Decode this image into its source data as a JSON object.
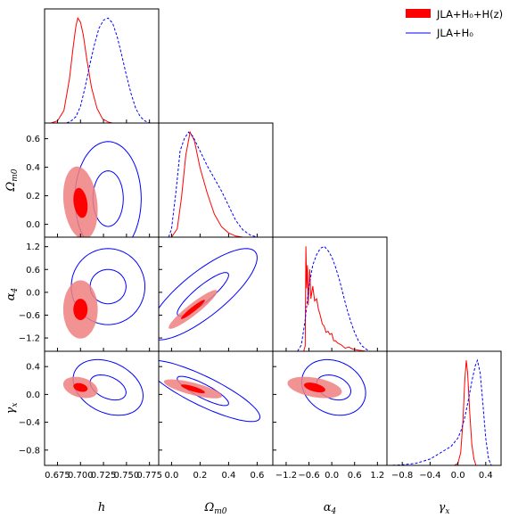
{
  "legend": {
    "placement": "top-right",
    "entries": [
      {
        "label": "JLA+H₀+H(z)",
        "style": "filled",
        "color": "#ff0000"
      },
      {
        "label": "JLA+H₀",
        "style": "line",
        "color": "#0000ff"
      }
    ]
  },
  "axis_labels": {
    "h": "h",
    "om": "Ωm0",
    "a4": "α4",
    "gx": "γx"
  },
  "chart_data": {
    "type": "triangle",
    "parameters": [
      "h",
      "om",
      "a4",
      "gx"
    ],
    "ranges": {
      "h": [
        0.661,
        0.785
      ],
      "om": [
        -0.09,
        0.71
      ],
      "a4": [
        -1.55,
        1.45
      ],
      "gx": [
        -1.02,
        0.62
      ]
    },
    "ticks": {
      "h": {
        "values": [
          0.675,
          0.7,
          0.725,
          0.75,
          0.775
        ],
        "labels": [
          "0.675",
          "0.700",
          "0.725",
          "0.750",
          "0.775"
        ]
      },
      "om": {
        "values": [
          0.0,
          0.2,
          0.4,
          0.6
        ],
        "labels": [
          "0.0",
          "0.2",
          "0.4",
          "0.6"
        ]
      },
      "a4": {
        "values": [
          -1.2,
          -0.6,
          0.0,
          0.6,
          1.2
        ],
        "labels": [
          "−1.2",
          "−0.6",
          "0.0",
          "0.6",
          "1.2"
        ]
      },
      "gx": {
        "values": [
          -0.8,
          -0.4,
          0.0,
          0.4
        ],
        "labels": [
          "−0.8",
          "−0.4",
          "0.0",
          "0.4"
        ]
      }
    },
    "series": [
      {
        "name": "JLA+H₀+H(z)",
        "color": "#ff0000",
        "marginals": {
          "h": [
            [
              0.668,
              0
            ],
            [
              0.675,
              0.02
            ],
            [
              0.682,
              0.12
            ],
            [
              0.688,
              0.42
            ],
            [
              0.692,
              0.72
            ],
            [
              0.695,
              0.92
            ],
            [
              0.697,
              1.0
            ],
            [
              0.7,
              0.96
            ],
            [
              0.703,
              0.84
            ],
            [
              0.707,
              0.6
            ],
            [
              0.712,
              0.34
            ],
            [
              0.718,
              0.14
            ],
            [
              0.724,
              0.04
            ],
            [
              0.73,
              0.01
            ],
            [
              0.735,
              0
            ]
          ],
          "om": [
            [
              0.0,
              0
            ],
            [
              0.04,
              0.08
            ],
            [
              0.07,
              0.38
            ],
            [
              0.1,
              0.78
            ],
            [
              0.13,
              1.0
            ],
            [
              0.16,
              0.92
            ],
            [
              0.2,
              0.66
            ],
            [
              0.25,
              0.42
            ],
            [
              0.3,
              0.22
            ],
            [
              0.35,
              0.1
            ],
            [
              0.4,
              0.04
            ],
            [
              0.45,
              0.01
            ],
            [
              0.5,
              0
            ]
          ],
          "a4": [
            [
              -0.74,
              0
            ],
            [
              -0.7,
              0.05
            ],
            [
              -0.68,
              1.0
            ],
            [
              -0.66,
              0.6
            ],
            [
              -0.64,
              0.82
            ],
            [
              -0.62,
              0.44
            ],
            [
              -0.58,
              0.78
            ],
            [
              -0.55,
              0.5
            ],
            [
              -0.5,
              0.62
            ],
            [
              -0.45,
              0.48
            ],
            [
              -0.4,
              0.5
            ],
            [
              -0.35,
              0.4
            ],
            [
              -0.3,
              0.34
            ],
            [
              -0.25,
              0.26
            ],
            [
              -0.2,
              0.24
            ],
            [
              -0.15,
              0.18
            ],
            [
              -0.1,
              0.19
            ],
            [
              -0.05,
              0.16
            ],
            [
              0.0,
              0.17
            ],
            [
              0.05,
              0.1
            ],
            [
              0.1,
              0.1
            ],
            [
              0.15,
              0.08
            ],
            [
              0.25,
              0.06
            ],
            [
              0.35,
              0.03
            ],
            [
              0.45,
              0.04
            ],
            [
              0.55,
              0.02
            ],
            [
              0.7,
              0.01
            ],
            [
              0.9,
              0
            ]
          ],
          "gx": [
            [
              -0.05,
              0
            ],
            [
              0.0,
              0.02
            ],
            [
              0.04,
              0.12
            ],
            [
              0.07,
              0.4
            ],
            [
              0.1,
              0.82
            ],
            [
              0.12,
              1.0
            ],
            [
              0.14,
              0.88
            ],
            [
              0.17,
              0.5
            ],
            [
              0.2,
              0.2
            ],
            [
              0.23,
              0.06
            ],
            [
              0.26,
              0
            ]
          ]
        },
        "contours": {
          "om|h": {
            "c": [
              0.7,
              0.15
            ],
            "inner": {
              "sx": 0.0055,
              "sy": 0.075,
              "rho": -0.25
            },
            "outer": {
              "sx": 0.011,
              "sy": 0.15,
              "rho": -0.2
            }
          },
          "a4|h": {
            "c": [
              0.7,
              -0.45
            ],
            "inner": {
              "sx": 0.0055,
              "sy": 0.2,
              "rho": 0.0
            },
            "outer": {
              "sx": 0.011,
              "sy": 0.45,
              "rho": 0.0
            }
          },
          "gx|h": {
            "c": [
              0.7,
              0.1
            ],
            "inner": {
              "sx": 0.0055,
              "sy": 0.045,
              "rho": -0.3
            },
            "outer": {
              "sx": 0.011,
              "sy": 0.09,
              "rho": -0.3
            }
          },
          "a4|om": {
            "c": [
              0.15,
              -0.45
            ],
            "inner": {
              "sx": 0.06,
              "sy": 0.18,
              "rho": 0.95
            },
            "outer": {
              "sx": 0.1,
              "sy": 0.3,
              "rho": 0.93
            }
          },
          "gx|om": {
            "c": [
              0.15,
              0.08
            ],
            "inner": {
              "sx": 0.06,
              "sy": 0.045,
              "rho": -0.8
            },
            "outer": {
              "sx": 0.12,
              "sy": 0.08,
              "rho": -0.75
            }
          },
          "gx|a4": {
            "c": [
              -0.45,
              0.1
            ],
            "inner": {
              "sx": 0.2,
              "sy": 0.05,
              "rho": -0.5
            },
            "outer": {
              "sx": 0.42,
              "sy": 0.09,
              "rho": -0.4
            }
          }
        }
      },
      {
        "name": "JLA+H₀",
        "color": "#0000ff",
        "marginals": {
          "h": [
            [
              0.685,
              0
            ],
            [
              0.69,
              0.02
            ],
            [
              0.695,
              0.06
            ],
            [
              0.7,
              0.16
            ],
            [
              0.705,
              0.34
            ],
            [
              0.71,
              0.55
            ],
            [
              0.715,
              0.74
            ],
            [
              0.72,
              0.9
            ],
            [
              0.725,
              0.98
            ],
            [
              0.73,
              1.0
            ],
            [
              0.735,
              0.95
            ],
            [
              0.74,
              0.82
            ],
            [
              0.745,
              0.64
            ],
            [
              0.75,
              0.45
            ],
            [
              0.755,
              0.28
            ],
            [
              0.76,
              0.14
            ],
            [
              0.765,
              0.06
            ],
            [
              0.77,
              0.02
            ],
            [
              0.775,
              0
            ]
          ],
          "om": [
            [
              -0.02,
              0
            ],
            [
              0.0,
              0.08
            ],
            [
              0.03,
              0.42
            ],
            [
              0.06,
              0.82
            ],
            [
              0.09,
              0.94
            ],
            [
              0.12,
              1.0
            ],
            [
              0.15,
              0.96
            ],
            [
              0.2,
              0.82
            ],
            [
              0.25,
              0.68
            ],
            [
              0.3,
              0.56
            ],
            [
              0.35,
              0.44
            ],
            [
              0.4,
              0.3
            ],
            [
              0.45,
              0.16
            ],
            [
              0.5,
              0.07
            ],
            [
              0.55,
              0.02
            ],
            [
              0.6,
              0
            ]
          ],
          "a4": [
            [
              -0.9,
              0
            ],
            [
              -0.8,
              0.06
            ],
            [
              -0.7,
              0.3
            ],
            [
              -0.6,
              0.62
            ],
            [
              -0.5,
              0.82
            ],
            [
              -0.4,
              0.92
            ],
            [
              -0.3,
              0.98
            ],
            [
              -0.2,
              1.0
            ],
            [
              -0.1,
              0.96
            ],
            [
              0.0,
              0.9
            ],
            [
              0.1,
              0.8
            ],
            [
              0.2,
              0.68
            ],
            [
              0.3,
              0.54
            ],
            [
              0.4,
              0.4
            ],
            [
              0.5,
              0.28
            ],
            [
              0.6,
              0.18
            ],
            [
              0.7,
              0.1
            ],
            [
              0.8,
              0.05
            ],
            [
              0.9,
              0.02
            ],
            [
              1.0,
              0
            ]
          ],
          "gx": [
            [
              -1.0,
              0
            ],
            [
              -0.8,
              0.005
            ],
            [
              -0.6,
              0.02
            ],
            [
              -0.4,
              0.06
            ],
            [
              -0.3,
              0.1
            ],
            [
              -0.2,
              0.14
            ],
            [
              -0.1,
              0.18
            ],
            [
              0.0,
              0.26
            ],
            [
              0.05,
              0.34
            ],
            [
              0.1,
              0.46
            ],
            [
              0.15,
              0.62
            ],
            [
              0.2,
              0.8
            ],
            [
              0.25,
              0.95
            ],
            [
              0.28,
              1.0
            ],
            [
              0.32,
              0.88
            ],
            [
              0.36,
              0.58
            ],
            [
              0.4,
              0.26
            ],
            [
              0.44,
              0.06
            ],
            [
              0.48,
              0
            ]
          ]
        },
        "contours": {
          "om|h": {
            "c": [
              0.73,
              0.18
            ],
            "inner": {
              "sx": 0.011,
              "sy": 0.13,
              "rho": 0.0
            },
            "outer": {
              "sx": 0.018,
              "sy": 0.2,
              "rho": 0.0
            }
          },
          "a4|h": {
            "c": [
              0.73,
              0.15
            ],
            "inner": {
              "sx": 0.013,
              "sy": 0.3,
              "rho": 0.0
            },
            "outer": {
              "sx": 0.02,
              "sy": 0.5,
              "rho": 0.0
            }
          },
          "gx|h": {
            "c": [
              0.73,
              0.1
            ],
            "inner": {
              "sx": 0.013,
              "sy": 0.12,
              "rho": -0.4
            },
            "outer": {
              "sx": 0.019,
              "sy": 0.2,
              "rho": -0.3
            }
          },
          "a4|om": {
            "c": [
              0.22,
              -0.05
            ],
            "inner": {
              "sx": 0.12,
              "sy": 0.38,
              "rho": 0.88
            },
            "outer": {
              "sx": 0.19,
              "sy": 0.6,
              "rho": 0.8
            }
          },
          "gx|om": {
            "c": [
              0.22,
              0.05
            ],
            "inner": {
              "sx": 0.12,
              "sy": 0.14,
              "rho": -0.85
            },
            "outer": {
              "sx": 0.2,
              "sy": 0.22,
              "rho": -0.85
            }
          },
          "gx|a4": {
            "c": [
              0.05,
              0.1
            ],
            "inner": {
              "sx": 0.3,
              "sy": 0.12,
              "rho": -0.3
            },
            "outer": {
              "sx": 0.42,
              "sy": 0.2,
              "rho": -0.2
            }
          }
        }
      }
    ],
    "grid": false
  }
}
